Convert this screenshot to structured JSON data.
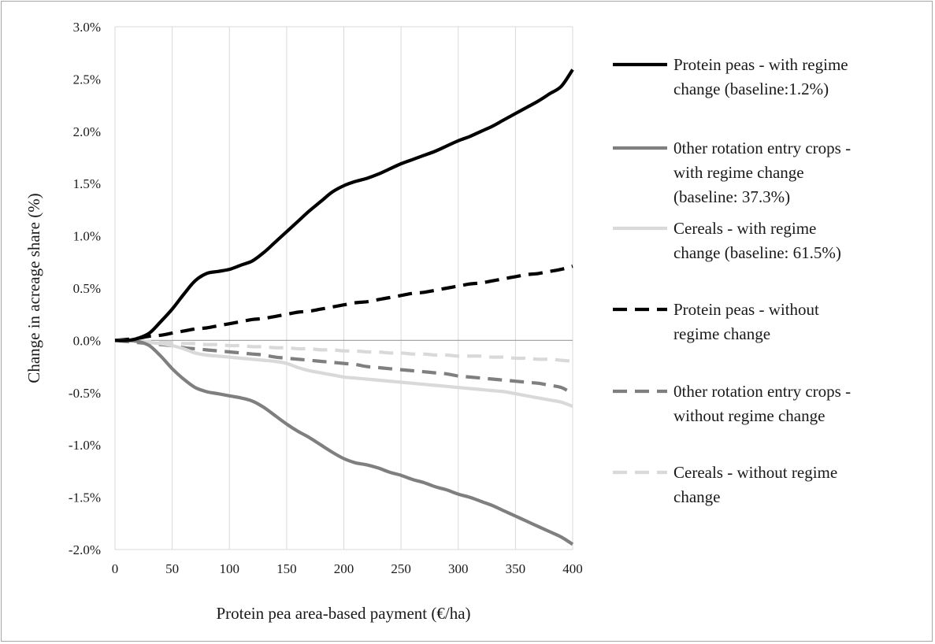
{
  "chart_data": {
    "type": "line",
    "title": "",
    "xlabel": "Protein pea area-based payment (€/ha)",
    "ylabel": "Change in acreage share (%)",
    "xlim": [
      0,
      400
    ],
    "ylim": [
      -2.0,
      3.0
    ],
    "x_ticks": [
      0,
      50,
      100,
      150,
      200,
      250,
      300,
      350,
      400
    ],
    "y_ticks": [
      3.0,
      2.5,
      2.0,
      1.5,
      1.0,
      0.5,
      0.0,
      -0.5,
      -1.0,
      -1.5,
      -2.0
    ],
    "y_tick_labels": [
      "3.0%",
      "2.5%",
      "2.0%",
      "1.5%",
      "1.0%",
      "0.5%",
      "0.0%",
      "-0.5%",
      "-1.0%",
      "-1.5%",
      "-2.0%"
    ],
    "grid": "vertical",
    "legend_position": "right",
    "x": [
      0,
      10,
      20,
      30,
      40,
      50,
      60,
      70,
      80,
      90,
      100,
      110,
      120,
      130,
      140,
      150,
      160,
      170,
      180,
      190,
      200,
      210,
      220,
      230,
      240,
      250,
      260,
      270,
      280,
      290,
      300,
      310,
      320,
      330,
      340,
      350,
      360,
      370,
      380,
      390,
      400
    ],
    "series": [
      {
        "name": "Protein peas - with regime change (baseline:1.2%)",
        "legend_lines": [
          "Protein peas - with regime",
          "change (baseline:1.2%)"
        ],
        "color": "#000000",
        "dash": "solid",
        "values": [
          0.0,
          0.0,
          0.02,
          0.07,
          0.18,
          0.3,
          0.44,
          0.57,
          0.64,
          0.66,
          0.68,
          0.72,
          0.76,
          0.84,
          0.94,
          1.04,
          1.14,
          1.24,
          1.33,
          1.42,
          1.48,
          1.52,
          1.55,
          1.59,
          1.64,
          1.69,
          1.73,
          1.77,
          1.81,
          1.86,
          1.91,
          1.95,
          2.0,
          2.05,
          2.11,
          2.17,
          2.23,
          2.29,
          2.36,
          2.43,
          2.59
        ]
      },
      {
        "name": "0ther rotation entry crops - with regime change (baseline: 37.3%)",
        "legend_lines": [
          "0ther rotation entry crops -",
          "with regime change",
          "(baseline: 37.3%)"
        ],
        "color": "#7f7f7f",
        "dash": "solid",
        "values": [
          0.0,
          0.0,
          -0.01,
          -0.05,
          -0.15,
          -0.27,
          -0.37,
          -0.45,
          -0.49,
          -0.51,
          -0.53,
          -0.55,
          -0.58,
          -0.64,
          -0.72,
          -0.8,
          -0.87,
          -0.93,
          -1.0,
          -1.07,
          -1.13,
          -1.17,
          -1.19,
          -1.22,
          -1.26,
          -1.29,
          -1.33,
          -1.36,
          -1.4,
          -1.43,
          -1.47,
          -1.5,
          -1.54,
          -1.58,
          -1.63,
          -1.68,
          -1.73,
          -1.78,
          -1.83,
          -1.88,
          -1.95
        ]
      },
      {
        "name": "Cereals - with regime change (baseline: 61.5%)",
        "legend_lines": [
          "Cereals - with regime",
          "change (baseline: 61.5%)"
        ],
        "color": "#d9d9d9",
        "dash": "solid",
        "values": [
          0.0,
          0.0,
          -0.01,
          -0.02,
          -0.03,
          -0.05,
          -0.08,
          -0.12,
          -0.14,
          -0.15,
          -0.16,
          -0.17,
          -0.18,
          -0.19,
          -0.2,
          -0.22,
          -0.26,
          -0.29,
          -0.31,
          -0.33,
          -0.35,
          -0.36,
          -0.37,
          -0.38,
          -0.39,
          -0.4,
          -0.41,
          -0.42,
          -0.43,
          -0.44,
          -0.45,
          -0.46,
          -0.47,
          -0.48,
          -0.49,
          -0.51,
          -0.53,
          -0.55,
          -0.57,
          -0.59,
          -0.63
        ]
      },
      {
        "name": "Protein peas - without regime change",
        "legend_lines": [
          "Protein peas - without",
          "regime change"
        ],
        "color": "#000000",
        "dash": "dashed",
        "values": [
          0.0,
          0.01,
          0.02,
          0.04,
          0.05,
          0.07,
          0.09,
          0.11,
          0.12,
          0.14,
          0.16,
          0.18,
          0.2,
          0.21,
          0.23,
          0.25,
          0.27,
          0.28,
          0.3,
          0.32,
          0.34,
          0.36,
          0.37,
          0.39,
          0.41,
          0.43,
          0.45,
          0.46,
          0.48,
          0.5,
          0.52,
          0.54,
          0.55,
          0.57,
          0.59,
          0.61,
          0.63,
          0.64,
          0.66,
          0.68,
          0.71
        ]
      },
      {
        "name": "0ther rotation entry crops - without regime change",
        "legend_lines": [
          "0ther rotation entry crops -",
          "without regime change"
        ],
        "color": "#7f7f7f",
        "dash": "dashed",
        "values": [
          0.0,
          -0.01,
          -0.02,
          -0.03,
          -0.04,
          -0.05,
          -0.07,
          -0.08,
          -0.09,
          -0.1,
          -0.11,
          -0.12,
          -0.13,
          -0.14,
          -0.16,
          -0.17,
          -0.18,
          -0.19,
          -0.2,
          -0.21,
          -0.22,
          -0.23,
          -0.25,
          -0.26,
          -0.27,
          -0.28,
          -0.29,
          -0.3,
          -0.31,
          -0.32,
          -0.34,
          -0.35,
          -0.36,
          -0.37,
          -0.38,
          -0.39,
          -0.4,
          -0.41,
          -0.43,
          -0.45,
          -0.51
        ]
      },
      {
        "name": "Cereals - without regime change",
        "legend_lines": [
          "Cereals - without regime",
          "change"
        ],
        "color": "#d9d9d9",
        "dash": "dashed",
        "values": [
          0.0,
          0.0,
          -0.01,
          -0.01,
          -0.02,
          -0.02,
          -0.03,
          -0.03,
          -0.04,
          -0.04,
          -0.05,
          -0.05,
          -0.06,
          -0.06,
          -0.07,
          -0.07,
          -0.08,
          -0.08,
          -0.09,
          -0.09,
          -0.1,
          -0.1,
          -0.11,
          -0.11,
          -0.12,
          -0.12,
          -0.13,
          -0.13,
          -0.14,
          -0.14,
          -0.15,
          -0.15,
          -0.15,
          -0.16,
          -0.16,
          -0.17,
          -0.17,
          -0.18,
          -0.18,
          -0.19,
          -0.2
        ]
      }
    ]
  }
}
